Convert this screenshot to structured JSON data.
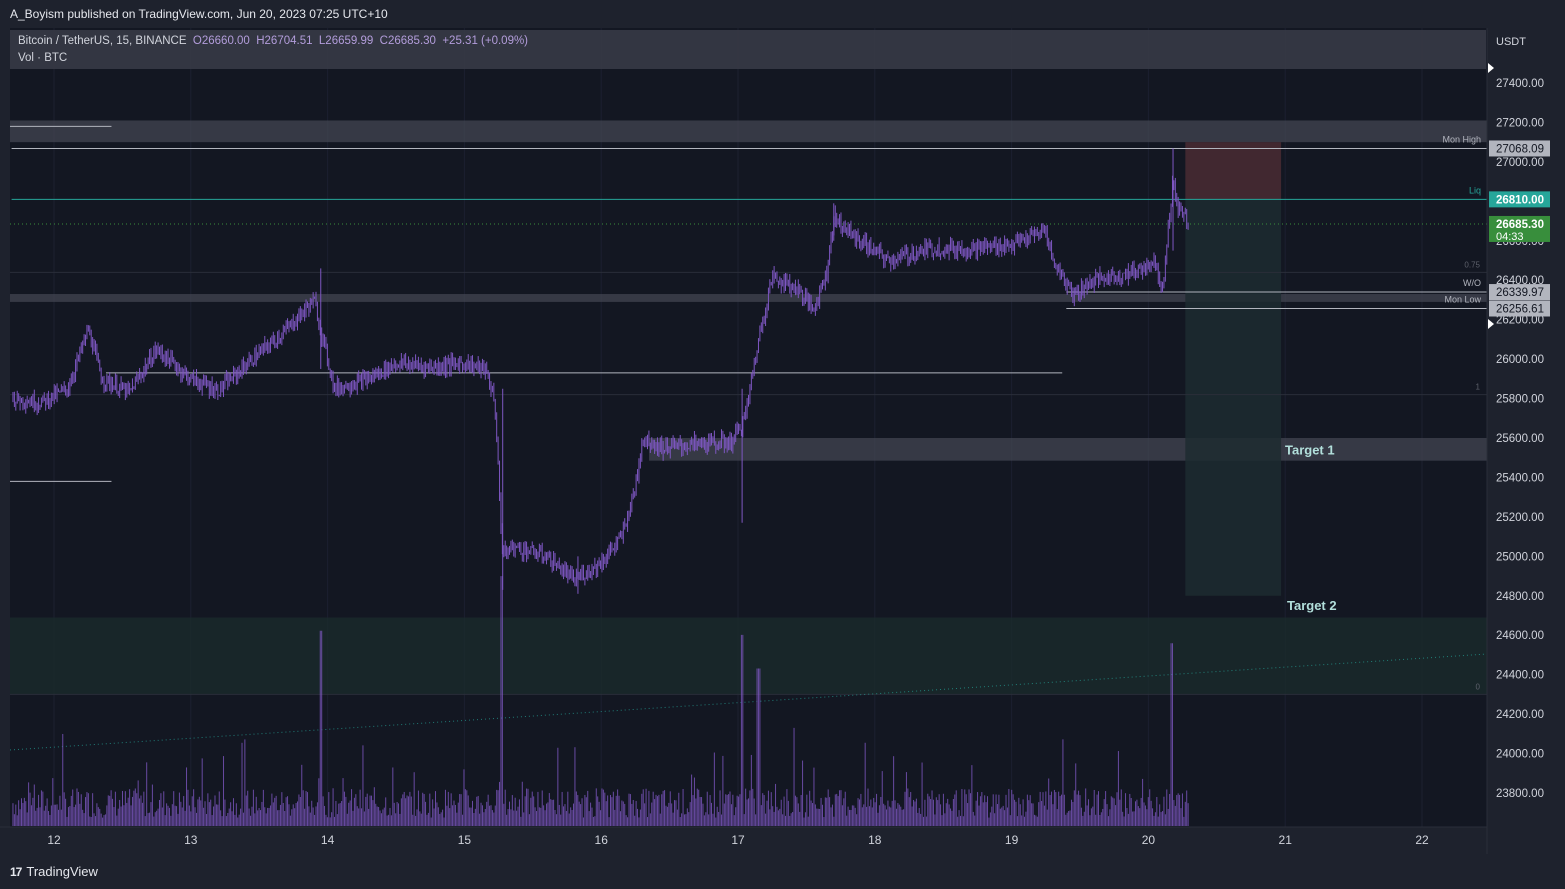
{
  "publisher_line": "A_Boyism published on TradingView.com, Jun 20, 2023 07:25 UTC+10",
  "legend": {
    "symbol": "Bitcoin / TetherUS, 15, BINANCE",
    "open": "O26660.00",
    "high": "H26704.51",
    "low": "L26659.99",
    "close": "C26685.30",
    "change": "+25.31 (+0.09%)",
    "volume_label": "Vol · BTC"
  },
  "footer": {
    "brand": "TradingView"
  },
  "colors": {
    "background": "#131722",
    "candle": "#7e57c2",
    "volume": "#7e57c2",
    "liq_line": "#26a69a",
    "current_price": "#388e3c",
    "short_stop_zone": "#4a2c33",
    "short_target_zone": "#1d2b30",
    "zone_gray": "#434651"
  },
  "chart_data": {
    "type": "candlestick",
    "symbol": "Bitcoin / TetherUS",
    "interval": "15",
    "exchange": "BINANCE",
    "currency_label": "USDT",
    "x_tick_labels": [
      "12",
      "13",
      "14",
      "15",
      "16",
      "17",
      "18",
      "19",
      "20",
      "21",
      "22"
    ],
    "y_tick_labels": [
      "23800.00",
      "24000.00",
      "24200.00",
      "24400.00",
      "24600.00",
      "24800.00",
      "25000.00",
      "25200.00",
      "25400.00",
      "25600.00",
      "25800.00",
      "26000.00",
      "26200.00",
      "26400.00",
      "26600.00",
      "26800.00",
      "27000.00",
      "27200.00",
      "27400.00"
    ],
    "ylim": [
      23640,
      27540
    ],
    "xlim": [
      11.69,
      22.48
    ],
    "price_path": [
      [
        11.7,
        25800
      ],
      [
        11.9,
        25780
      ],
      [
        12.1,
        25850
      ],
      [
        12.25,
        26150
      ],
      [
        12.35,
        25900
      ],
      [
        12.55,
        25830
      ],
      [
        12.75,
        26050
      ],
      [
        13.0,
        25900
      ],
      [
        13.2,
        25840
      ],
      [
        13.45,
        26000
      ],
      [
        13.7,
        26150
      ],
      [
        13.9,
        26300
      ],
      [
        14.05,
        25850
      ],
      [
        14.3,
        25900
      ],
      [
        14.5,
        25980
      ],
      [
        14.75,
        25960
      ],
      [
        15.0,
        25980
      ],
      [
        15.15,
        25950
      ],
      [
        15.22,
        25800
      ],
      [
        15.28,
        25000
      ],
      [
        15.35,
        25050
      ],
      [
        15.6,
        25000
      ],
      [
        15.8,
        24880
      ],
      [
        16.0,
        24970
      ],
      [
        16.15,
        25100
      ],
      [
        16.25,
        25350
      ],
      [
        16.3,
        25600
      ],
      [
        16.45,
        25550
      ],
      [
        16.7,
        25570
      ],
      [
        16.95,
        25580
      ],
      [
        17.05,
        25700
      ],
      [
        17.15,
        26100
      ],
      [
        17.25,
        26420
      ],
      [
        17.45,
        26350
      ],
      [
        17.55,
        26250
      ],
      [
        17.65,
        26450
      ],
      [
        17.7,
        26720
      ],
      [
        17.85,
        26620
      ],
      [
        18.1,
        26500
      ],
      [
        18.4,
        26560
      ],
      [
        18.7,
        26560
      ],
      [
        19.0,
        26580
      ],
      [
        19.25,
        26650
      ],
      [
        19.3,
        26500
      ],
      [
        19.45,
        26330
      ],
      [
        19.6,
        26400
      ],
      [
        19.9,
        26440
      ],
      [
        20.05,
        26500
      ],
      [
        20.1,
        26350
      ],
      [
        20.18,
        26900
      ],
      [
        20.22,
        26760
      ],
      [
        20.3,
        26685
      ]
    ],
    "volume_spikes": [
      {
        "x": 13.95,
        "value": 9.3
      },
      {
        "x": 15.27,
        "value": 11.9
      },
      {
        "x": 17.03,
        "value": 9.1
      },
      {
        "x": 17.15,
        "value": 7.5
      },
      {
        "x": 20.17,
        "value": 8.7
      }
    ],
    "price_labels": [
      {
        "text": "27068.09",
        "value": 27068.09,
        "style": "gray"
      },
      {
        "text": "26810.00",
        "value": 26810.0,
        "style": "teal"
      },
      {
        "text": "26685.30",
        "value": 26685.3,
        "style": "green",
        "sub": "04:33"
      },
      {
        "text": "26339.97",
        "value": 26339.97,
        "style": "gray"
      },
      {
        "text": "26256.61",
        "value": 26256.61,
        "style": "gray"
      }
    ],
    "level_lines": [
      {
        "label": "Mon High",
        "value": 27068.09,
        "from_day": 11.69
      },
      {
        "label": "Liq",
        "value": 26810.0,
        "from_day": 11.69
      },
      {
        "label": "W/O",
        "value": 26339.97,
        "from_day": 19.4
      },
      {
        "label": "Mon Low",
        "value": 26256.61,
        "from_day": 19.4
      }
    ],
    "fib_levels": [
      {
        "label": "0.75",
        "value": 26440
      },
      {
        "label": "1",
        "value": 25820
      },
      {
        "label": "0",
        "value": 24300
      }
    ],
    "zones": [
      {
        "label": "",
        "from": 27100,
        "to": 27210
      },
      {
        "label": "",
        "from": 26290,
        "to": 26330
      },
      {
        "label": "Target 1",
        "from": 25485,
        "to": 25600
      },
      {
        "label": "",
        "from": 24300,
        "to": 24690
      }
    ],
    "position": {
      "type": "short",
      "entry": 26810.0,
      "stop": 27100,
      "target": 24800,
      "x_from": 20.27,
      "x_to": 20.97,
      "target_label": "Target 2"
    },
    "grid": true
  }
}
